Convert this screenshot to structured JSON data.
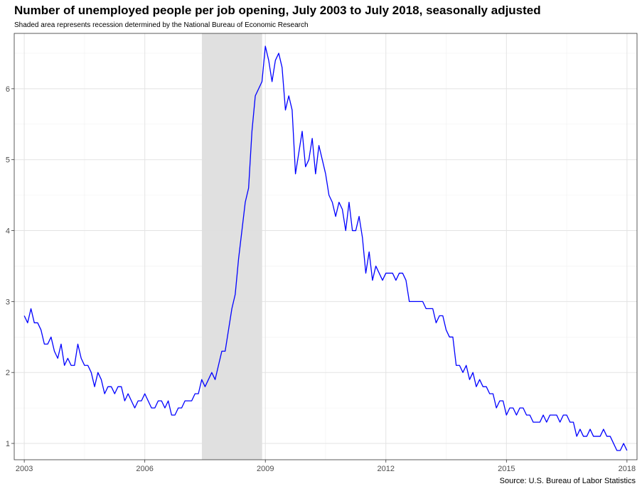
{
  "title": "Number of unemployed people per job opening, July 2003 to July 2018, seasonally adjusted",
  "subtitle": "Shaded area represents recession determined by the National Bureau of Economic Research",
  "caption": "Source: U.S. Bureau of Labor Statistics",
  "colors": {
    "line": "#0000ff",
    "recession_shade": "#dedede",
    "grid_major": "#e3e3e3",
    "grid_minor": "#f1f1f1",
    "panel_border": "#333333"
  },
  "chart_data": {
    "type": "line",
    "title": "Number of unemployed people per job opening, July 2003 to July 2018, seasonally adjusted",
    "subtitle": "Shaded area represents recession determined by the National Bureau of Economic Research",
    "xlabel": "",
    "ylabel": "",
    "xlim": [
      2002.75,
      2018.25
    ],
    "ylim": [
      0.77,
      6.78
    ],
    "x_ticks": [
      2003,
      2006,
      2009,
      2012,
      2015,
      2018
    ],
    "x_tick_labels": [
      "2003",
      "2006",
      "2009",
      "2012",
      "2015",
      "2018"
    ],
    "y_ticks": [
      1,
      2,
      3,
      4,
      5,
      6
    ],
    "y_tick_labels": [
      "1",
      "2",
      "3",
      "4",
      "5",
      "6"
    ],
    "x_minor_ticks": [
      2004.5,
      2007.5,
      2010.5,
      2013.5,
      2016.5
    ],
    "y_minor_ticks": [
      1.5,
      2.5,
      3.5,
      4.5,
      5.5,
      6.5
    ],
    "grid": true,
    "recession": {
      "start": 2007.42,
      "end": 2008.92
    },
    "x_start": 2003.0,
    "x_step": 0.08333,
    "series": [
      {
        "values": [
          2.8,
          2.7,
          2.9,
          2.7,
          2.7,
          2.6,
          2.4,
          2.4,
          2.5,
          2.3,
          2.2,
          2.4,
          2.1,
          2.2,
          2.1,
          2.1,
          2.4,
          2.2,
          2.1,
          2.1,
          2.0,
          1.8,
          2.0,
          1.9,
          1.7,
          1.8,
          1.8,
          1.7,
          1.8,
          1.8,
          1.6,
          1.7,
          1.6,
          1.5,
          1.6,
          1.6,
          1.7,
          1.6,
          1.5,
          1.5,
          1.6,
          1.6,
          1.5,
          1.6,
          1.4,
          1.4,
          1.5,
          1.5,
          1.6,
          1.6,
          1.6,
          1.7,
          1.7,
          1.9,
          1.8,
          1.9,
          2.0,
          1.9,
          2.1,
          2.3,
          2.3,
          2.6,
          2.9,
          3.1,
          3.6,
          4.0,
          4.4,
          4.6,
          5.4,
          5.9,
          6.0,
          6.1,
          6.6,
          6.4,
          6.1,
          6.4,
          6.5,
          6.3,
          5.7,
          5.9,
          5.7,
          4.8,
          5.1,
          5.4,
          4.9,
          5.0,
          5.3,
          4.8,
          5.2,
          5.0,
          4.8,
          4.5,
          4.4,
          4.2,
          4.4,
          4.3,
          4.0,
          4.4,
          4.0,
          4.0,
          4.2,
          3.9,
          3.4,
          3.7,
          3.3,
          3.5,
          3.4,
          3.3,
          3.4,
          3.4,
          3.4,
          3.3,
          3.4,
          3.4,
          3.3,
          3.0,
          3.0,
          3.0,
          3.0,
          3.0,
          2.9,
          2.9,
          2.9,
          2.7,
          2.8,
          2.8,
          2.6,
          2.5,
          2.5,
          2.1,
          2.1,
          2.0,
          2.1,
          1.9,
          2.0,
          1.8,
          1.9,
          1.8,
          1.8,
          1.7,
          1.7,
          1.5,
          1.6,
          1.6,
          1.4,
          1.5,
          1.5,
          1.4,
          1.5,
          1.5,
          1.4,
          1.4,
          1.3,
          1.3,
          1.3,
          1.4,
          1.3,
          1.4,
          1.4,
          1.4,
          1.3,
          1.4,
          1.4,
          1.3,
          1.3,
          1.1,
          1.2,
          1.1,
          1.1,
          1.2,
          1.1,
          1.1,
          1.1,
          1.2,
          1.1,
          1.1,
          1.0,
          0.9,
          0.9,
          1.0,
          0.9
        ]
      }
    ]
  }
}
